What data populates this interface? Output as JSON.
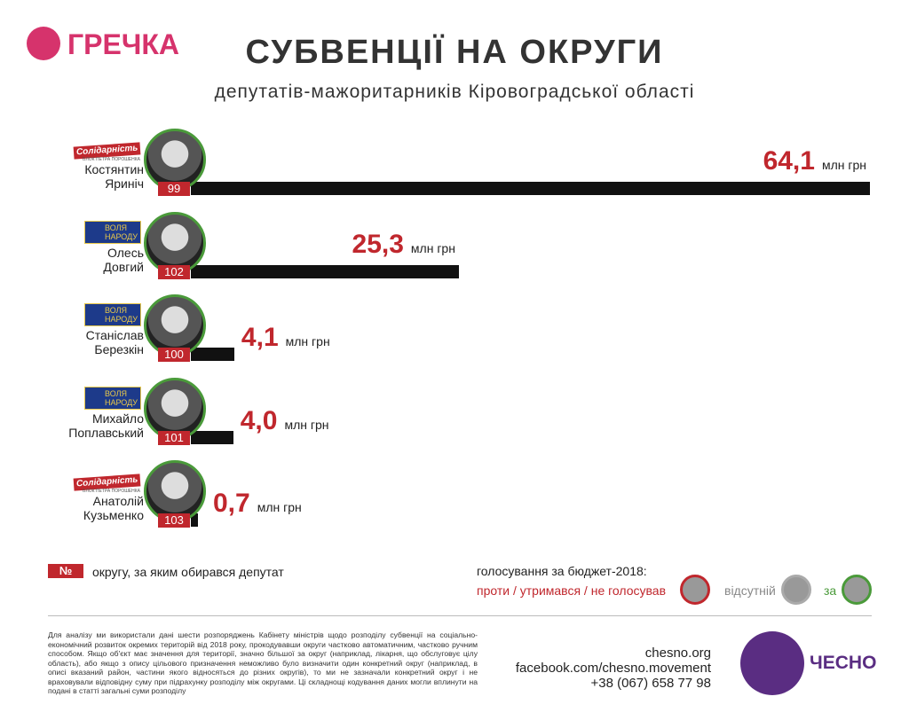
{
  "brand": "ГРЕЧКА",
  "chart_data": {
    "type": "bar",
    "title": "СУБВЕНЦІЇ НА ОКРУГИ",
    "subtitle": "депутатів-мажоритарників Кіровоградської області",
    "categories": [
      "Костянтин Яриніч",
      "Олесь Довгий",
      "Станіслав Березкін",
      "Михайло Поплавський",
      "Анатолій Кузьменко"
    ],
    "values": [
      64.1,
      25.3,
      4.1,
      4.0,
      0.7
    ],
    "value_labels": [
      "64,1",
      "25,3",
      "4,1",
      "4,0",
      "0,7"
    ],
    "unit": "млн грн",
    "districts": [
      "99",
      "102",
      "100",
      "101",
      "103"
    ],
    "parties": [
      [
        "Солідарність",
        "Блок Петра Порошенка"
      ],
      [
        "Воля",
        "народу"
      ],
      [
        "Воля",
        "народу"
      ],
      [
        "Воля",
        "народу"
      ],
      [
        "Солідарність",
        "Блок Петра Порошенка"
      ]
    ],
    "color": "#111111",
    "xlim": [
      0,
      64.1
    ]
  },
  "legend": {
    "district_symbol": "№",
    "district_text": "округу, за яким обирався депутат",
    "vote_title": "голосування за бюджет-2018:",
    "vote_against": "проти / утримався / не голосував",
    "vote_absent": "відсутній",
    "vote_for": "за"
  },
  "footer": {
    "note": "Для аналізу ми використали дані шести розпоряджень Кабінету міністрів щодо розподілу субвенції на соціально-економічний розвиток окремих територій від 2018 року, прокодувавши округи частково автоматичним, частково ручним способом. Якщо об'єкт має значення для території, значно більшої за округ (наприклад, лікарня, що обслуговує цілу область), або якщо з опису цільового призначення неможливо було визначити один конкретний округ (наприклад, в описі вказаний район, частини якого відносяться до різних округів), то ми не зазначали конкретний округ і не враховували відповідну суму при підрахунку розподілу між округами. Ці складнощі кодування даних могли вплинути на подані в статті загальні суми розподілу",
    "site": "chesno.org",
    "facebook": "facebook.com/chesno.movement",
    "phone": "+38 (067) 658 77 98",
    "logo": "ЧЕСНО"
  }
}
